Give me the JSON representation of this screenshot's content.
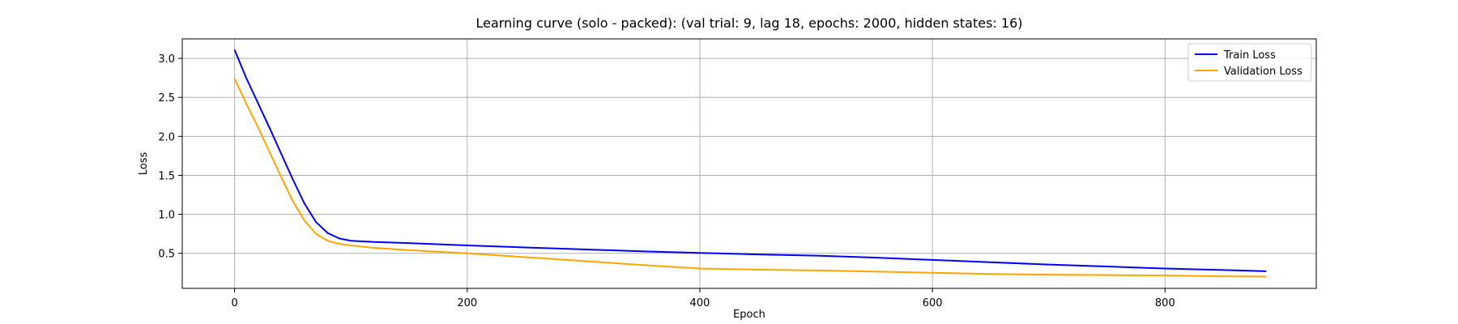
{
  "chart_data": {
    "type": "line",
    "title": "Learning curve (solo - packed): (val trial: 9, lag 18, epochs: 2000, hidden states: 16)",
    "xlabel": "Epoch",
    "ylabel": "Loss",
    "xlim": [
      -45,
      930
    ],
    "ylim": [
      0.05,
      3.25
    ],
    "xticks": [
      0,
      200,
      400,
      600,
      800
    ],
    "yticks": [
      0.5,
      1.0,
      1.5,
      2.0,
      2.5,
      3.0
    ],
    "xtick_labels": [
      "0",
      "200",
      "400",
      "600",
      "800"
    ],
    "ytick_labels": [
      "0.5",
      "1.0",
      "1.5",
      "2.0",
      "2.5",
      "3.0"
    ],
    "grid": true,
    "legend_position": "top-right",
    "series": [
      {
        "name": "Train Loss",
        "color": "#0000ff",
        "x": [
          0,
          10,
          20,
          30,
          40,
          50,
          60,
          70,
          80,
          90,
          100,
          120,
          150,
          200,
          250,
          300,
          350,
          400,
          450,
          500,
          550,
          600,
          650,
          700,
          750,
          800,
          850,
          887
        ],
        "y": [
          3.11,
          2.75,
          2.43,
          2.11,
          1.78,
          1.45,
          1.14,
          0.9,
          0.76,
          0.69,
          0.66,
          0.645,
          0.63,
          0.6,
          0.575,
          0.55,
          0.525,
          0.505,
          0.485,
          0.47,
          0.445,
          0.415,
          0.385,
          0.355,
          0.33,
          0.305,
          0.285,
          0.27
        ]
      },
      {
        "name": "Validation Loss",
        "color": "#ffa500",
        "x": [
          0,
          10,
          20,
          30,
          40,
          50,
          60,
          70,
          80,
          90,
          100,
          120,
          150,
          200,
          250,
          300,
          350,
          400,
          450,
          500,
          550,
          600,
          650,
          700,
          750,
          800,
          850,
          887
        ],
        "y": [
          2.74,
          2.42,
          2.12,
          1.8,
          1.48,
          1.17,
          0.92,
          0.75,
          0.66,
          0.62,
          0.6,
          0.57,
          0.54,
          0.5,
          0.45,
          0.4,
          0.35,
          0.305,
          0.29,
          0.28,
          0.265,
          0.25,
          0.235,
          0.225,
          0.22,
          0.215,
          0.205,
          0.2
        ]
      }
    ]
  }
}
